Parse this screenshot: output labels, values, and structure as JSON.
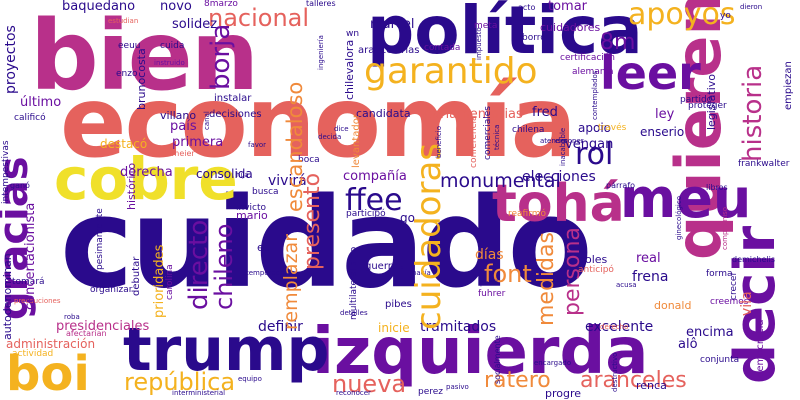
{
  "palette": {
    "indigo": "#2a0a8c",
    "violet": "#6a0fa0",
    "magenta": "#b8308a",
    "coral": "#e5625d",
    "orange": "#f08a3b",
    "amber": "#f4b21f",
    "yellow": "#f0e02a"
  },
  "words": {
    "cuidado": "cuidado",
    "bien": "bien",
    "economia": "economía",
    "politica": "política",
    "izquierda": "izquierda",
    "trump": "trump",
    "quieren": "quieren",
    "decir": "decir",
    "cobre": "cobre",
    "gracias": "gracias",
    "boi": "boi",
    "meu": "meu",
    "toha": "tohá",
    "garantido": "garantido",
    "leer": "leer",
    "nacional": "nacional",
    "apoyos": "apoyos",
    "monumental": "monumental",
    "republica": "república",
    "aranceles": "aranceles",
    "ratero": "ratero",
    "nueva": "nueva",
    "cuidadoras": "cuidadoras",
    "medidas": "medidas",
    "persona": "persona",
    "historia": "historia",
    "ffee": "ffee",
    "font": "font",
    "borja": "borja",
    "directo": "directo",
    "chileno": "chileno",
    "presento": "presentó",
    "remplazar": "remplazar",
    "escandaloso": "escandaloso",
    "rol": "rol",
    "m8": "8m",
    "elecciones": "elecciones",
    "compania": "compañía",
    "tramitados": "tramitados",
    "excelente": "excelente",
    "definir": "definir",
    "presidenciales": "presidenciales",
    "administracion": "administración",
    "baquedano": "baquedano",
    "solidez": "solidez",
    "novo": "novo",
    "marcel": "marcel",
    "tomar": "tomar",
    "cuidadores": "cuidadores",
    "ultimo": "último",
    "proyectos": "proyectos",
    "parlamentarias": "parlamentarias",
    "candidata": "candidata",
    "vengan": "vengan",
    "fred": "fred",
    "apoio": "apoio",
    "ley": "ley",
    "enserio": "enserio",
    "derecha": "derecha",
    "vivira": "vivirá",
    "pais": "país",
    "primera": "primera",
    "destaco": "destacó",
    "villano": "villano",
    "historico": "histórico",
    "consolida": "consolida",
    "mario": "mario",
    "dias": "días",
    "frena": "frena",
    "real": "real",
    "goles": "goles",
    "donald": "donald",
    "encima": "encima",
    "progre": "progre",
    "renca": "renca",
    "inicie": "inicie",
    "guerras": "guerras",
    "pibes": "pibes",
    "go": "go",
    "eu": "eu",
    "instalar": "instalar",
    "decisiones": "decisiones",
    "arancelarias": "arancelarias",
    "contada": "contada",
    "alemania": "alemania",
    "certificacion": "certificación",
    "tomara": "tomará",
    "organizar": "organizar",
    "autodenominan": "autodenominan",
    "concertacionista": "concertacionista",
    "prioridades": "prioridades",
    "debutar": "debutar",
    "pesimamente": "pesimamente",
    "crecer": "crecer",
    "democracia": "democracia",
    "vila": "vila",
    "boca": "boca",
    "busca": "busca",
    "invicto": "invicto",
    "participo": "participó",
    "frankwalter": "frankwalter",
    "demichelis": "demichelis",
    "empiezan": "empiezan",
    "legislativo": "legislativo",
    "proteger": "proteger",
    "partido": "partido",
    "atender": "atender",
    "chilena": "chilena",
    "comerciales": "comerciales",
    "conferencia": "conferencia",
    "levantador": "levantador",
    "chilevalora": "chilevalora",
    "brunocosta": "brunocosta",
    "cuida": "cuida",
    "enzo": "enzo",
    "eeuu": "eeuu",
    "gano": "ganó",
    "califico": "calificó",
    "steinmeier": "steinmeier",
    "wn": "wn",
    "alo": "alô",
    "creemos": "creemos",
    "conjunta": "conjunta",
    "forma": "forma",
    "anticipo": "anticipó",
    "fuhrer": "fuhrer",
    "reafirmo": "reafirmó",
    "meta": "meta",
    "borro": "borró",
    "acto": "acto",
    "talleres": "talleres",
    "marzo8": "8marzo",
    "estudian": "estudian",
    "multilateralismo": "multilateralismo",
    "carolina": "carolina",
    "intempestivas": "intempestivas",
    "acusa": "acusa",
    "libros": "libros",
    "perez": "perez",
    "afectarian": "afectarían",
    "roba": "roba",
    "socialmente": "socialmente",
    "traves": "través",
    "canal": "canal",
    "yo": "yo",
    "dieron": "dieron",
    "hija": "hija",
    "instruido": "instruido",
    "tecnica": "técnica",
    "hacia": "hacía",
    "dice": "dice",
    "decida": "decida",
    "favor": "favor",
    "beneficio": "beneficio",
    "exponer": "exponer",
    "ingenieria": "ingeniería",
    "perfil": "perfil",
    "detalles": "detalles",
    "equipo": "equipo",
    "pasivo": "pasivo",
    "encargado": "encargado",
    "derecho": "derecho",
    "parrafo": "párrafo",
    "compromiso": "compromiso",
    "destructivo": "destructivo",
    "impuesto": "impuesto",
    "precauciones": "precauciones",
    "actividad": "actividad",
    "interministerial": "interministerial",
    "reconocer": "reconocer",
    "temporada": "temporada",
    "contemplados": "contemplados",
    "inacabable": "inacabable",
    "ginecologico": "ginecológico"
  }
}
